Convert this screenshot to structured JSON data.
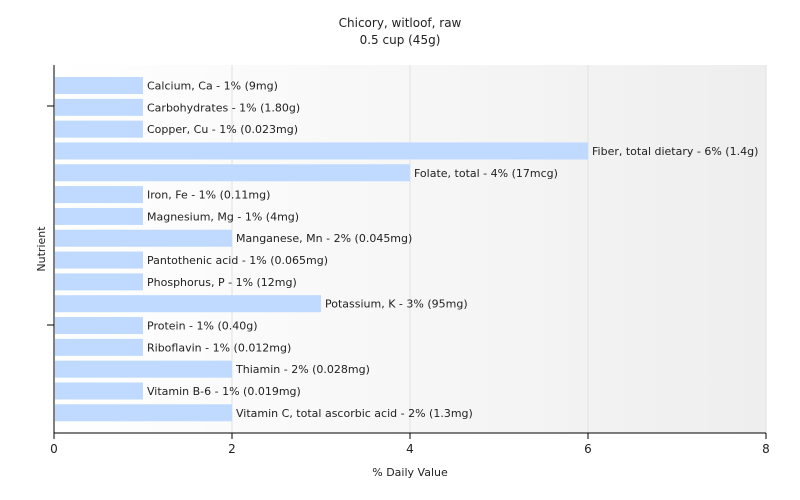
{
  "colors": {
    "bar": "#bfd9ff",
    "plot_bg_start": "#ffffff",
    "plot_bg_end": "#eeeeee",
    "gridline": "#e2e2e2",
    "axis": "#000000",
    "text": "#222222"
  },
  "chart_data": {
    "type": "bar",
    "orientation": "horizontal",
    "title": "Chicory, witloof, raw",
    "subtitle": "0.5 cup (45g)",
    "xlabel": "% Daily Value",
    "ylabel": "Nutrient",
    "xlim": [
      0,
      8
    ],
    "xticks": [
      "0",
      "2",
      "4",
      "6",
      "8"
    ],
    "grid": true,
    "categories": [
      "Calcium, Ca",
      "Carbohydrates",
      "Copper, Cu",
      "Fiber, total dietary",
      "Folate, total",
      "Iron, Fe",
      "Magnesium, Mg",
      "Manganese, Mn",
      "Pantothenic acid",
      "Phosphorus, P",
      "Potassium, K",
      "Protein",
      "Riboflavin",
      "Thiamin",
      "Vitamin B-6",
      "Vitamin C, total ascorbic acid"
    ],
    "values": [
      1,
      1,
      1,
      6,
      4,
      1,
      1,
      2,
      1,
      1,
      3,
      1,
      1,
      2,
      1,
      2
    ],
    "data_labels": [
      "Calcium, Ca - 1% (9mg)",
      "Carbohydrates - 1% (1.80g)",
      "Copper, Cu - 1% (0.023mg)",
      "Fiber, total dietary - 6% (1.4g)",
      "Folate, total - 4% (17mcg)",
      "Iron, Fe - 1% (0.11mg)",
      "Magnesium, Mg - 1% (4mg)",
      "Manganese, Mn - 2% (0.045mg)",
      "Pantothenic acid - 1% (0.065mg)",
      "Phosphorus, P - 1% (12mg)",
      "Potassium, K - 3% (95mg)",
      "Protein - 1% (0.40g)",
      "Riboflavin - 1% (0.012mg)",
      "Thiamin - 2% (0.028mg)",
      "Vitamin B-6 - 1% (0.019mg)",
      "Vitamin C, total ascorbic acid - 2% (1.3mg)"
    ]
  }
}
